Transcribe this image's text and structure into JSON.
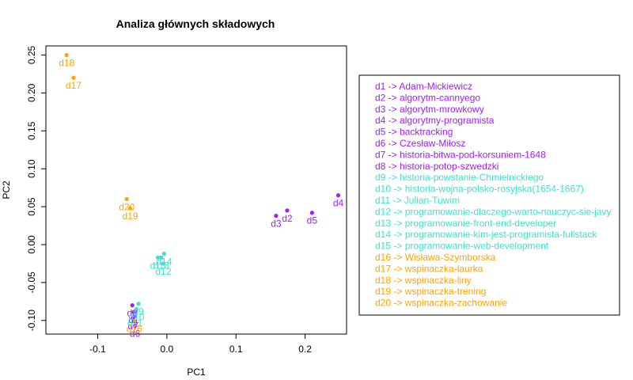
{
  "chart_data": {
    "type": "scatter",
    "title": "Analiza głównych składowych",
    "xlabel": "PC1",
    "ylabel": "PC2",
    "xlim": [
      -0.175,
      0.26
    ],
    "ylim": [
      -0.118,
      0.262
    ],
    "xticks": [
      -0.1,
      0.0,
      0.1,
      0.2
    ],
    "xtick_labels": [
      "-0.1",
      "0.0",
      "0.1",
      "0.2"
    ],
    "yticks": [
      -0.1,
      -0.05,
      0.0,
      0.05,
      0.1,
      0.15,
      0.2,
      0.25
    ],
    "ytick_labels": [
      "-0.10",
      "-0.05",
      "0.00",
      "0.05",
      "0.10",
      "0.15",
      "0.20",
      "0.25"
    ],
    "grid": false,
    "legend_position": "right",
    "colors": {
      "purple": "#a020f0",
      "turquoise": "#40e0d0",
      "orange": "#ffa500"
    },
    "legend": [
      {
        "text": "d1 -> Adam-Mickiewicz",
        "color": "purple"
      },
      {
        "text": "d2 -> algorytm-cannyego",
        "color": "purple"
      },
      {
        "text": "d3 -> algorytm-mrowkowy",
        "color": "purple"
      },
      {
        "text": "d4 -> algorytmy-programista",
        "color": "purple"
      },
      {
        "text": "d5 -> backtracking",
        "color": "purple"
      },
      {
        "text": "d6 -> Czesław-Miłosz",
        "color": "purple"
      },
      {
        "text": "d7 -> historia-bitwa-pod-korsuniem-1648",
        "color": "purple"
      },
      {
        "text": "d8 -> historia-potop-szwedzki",
        "color": "purple"
      },
      {
        "text": "d9 -> historia-powstanie-Chmielnickiego",
        "color": "turquoise"
      },
      {
        "text": "d10 -> historia-wojna-polsko-rosyjska(1654-1667)",
        "color": "turquoise"
      },
      {
        "text": "d11 -> Julian-Tuwim",
        "color": "turquoise"
      },
      {
        "text": "d12 -> programowanie-dlaczego-warto-nauczyc-sie-javy",
        "color": "turquoise"
      },
      {
        "text": "d13 -> programowanie-front-end-developer",
        "color": "turquoise"
      },
      {
        "text": "d14 -> programowanie-kim-jest-programista-fullstack",
        "color": "turquoise"
      },
      {
        "text": "d15 -> programowanie-web-development",
        "color": "turquoise"
      },
      {
        "text": "d16 -> Wisława-Szymborska",
        "color": "orange"
      },
      {
        "text": "d17 -> wspinaczka-laurka",
        "color": "orange"
      },
      {
        "text": "d18 -> wspinaczka-liny",
        "color": "orange"
      },
      {
        "text": "d19 -> wspinaczka-trening",
        "color": "orange"
      },
      {
        "text": "d20 -> wspinaczka-zachowanie",
        "color": "orange"
      }
    ],
    "points": [
      {
        "label": "d1",
        "x": -0.048,
        "y": -0.089,
        "color": "purple"
      },
      {
        "label": "d2",
        "x": 0.174,
        "y": 0.045,
        "color": "purple"
      },
      {
        "label": "d3",
        "x": 0.158,
        "y": 0.038,
        "color": "purple"
      },
      {
        "label": "d4",
        "x": 0.248,
        "y": 0.065,
        "color": "purple"
      },
      {
        "label": "d5",
        "x": 0.21,
        "y": 0.042,
        "color": "purple"
      },
      {
        "label": "d6",
        "x": -0.046,
        "y": -0.107,
        "color": "purple"
      },
      {
        "label": "d7",
        "x": -0.049,
        "y": -0.097,
        "color": "purple"
      },
      {
        "label": "d8",
        "x": -0.05,
        "y": -0.08,
        "color": "purple"
      },
      {
        "label": "d9",
        "x": -0.041,
        "y": -0.078,
        "color": "turquoise"
      },
      {
        "label": "d10",
        "x": -0.044,
        "y": -0.085,
        "color": "turquoise"
      },
      {
        "label": "d11",
        "x": -0.046,
        "y": -0.093,
        "color": "turquoise"
      },
      {
        "label": "d12",
        "x": -0.005,
        "y": -0.025,
        "color": "turquoise"
      },
      {
        "label": "d13",
        "x": -0.008,
        "y": -0.017,
        "color": "turquoise"
      },
      {
        "label": "d14",
        "x": -0.004,
        "y": -0.012,
        "color": "turquoise"
      },
      {
        "label": "d15",
        "x": -0.013,
        "y": -0.017,
        "color": "turquoise"
      },
      {
        "label": "d16",
        "x": -0.047,
        "y": -0.101,
        "color": "orange"
      },
      {
        "label": "d17",
        "x": -0.135,
        "y": 0.22,
        "color": "orange"
      },
      {
        "label": "d18",
        "x": -0.145,
        "y": 0.25,
        "color": "orange"
      },
      {
        "label": "d19",
        "x": -0.053,
        "y": 0.048,
        "color": "orange"
      },
      {
        "label": "d20",
        "x": -0.058,
        "y": 0.06,
        "color": "orange"
      }
    ]
  }
}
